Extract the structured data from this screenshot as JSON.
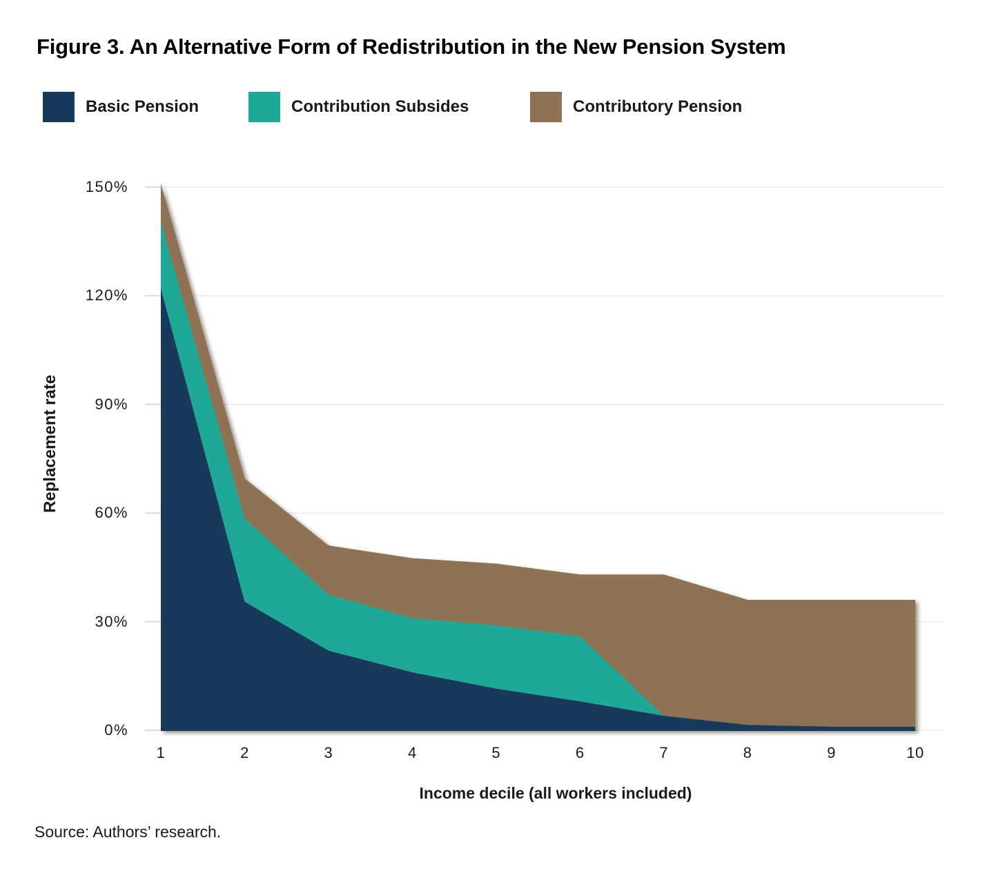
{
  "title": "Figure 3. An Alternative Form of Redistribution in the New Pension System",
  "legend": [
    {
      "label": "Basic Pension",
      "color": "#17395C"
    },
    {
      "label": "Contribution Subsides",
      "color": "#20A897"
    },
    {
      "label": "Contributory Pension",
      "color": "#8D7254"
    }
  ],
  "source": "Source: Authors’ research.",
  "chart_data": {
    "type": "area",
    "stacked": true,
    "title": "Figure 3. An Alternative Form of Redistribution in the New Pension System",
    "xlabel": "Income decile (all workers included)",
    "ylabel": "Replacement rate",
    "categories": [
      1,
      2,
      3,
      4,
      5,
      6,
      7,
      8,
      9,
      10
    ],
    "series": [
      {
        "name": "Basic Pension",
        "color": "#17395C",
        "values": [
          122,
          35.5,
          22,
          16,
          11.5,
          8,
          4,
          1.5,
          1,
          1
        ]
      },
      {
        "name": "Contribution Subsides",
        "color": "#20A897",
        "values": [
          18.5,
          23,
          15.5,
          15,
          17.5,
          18,
          0,
          0,
          0,
          0
        ]
      },
      {
        "name": "Contributory Pension",
        "color": "#8D7254",
        "values": [
          10.5,
          11,
          13.5,
          16.5,
          17,
          17,
          39,
          34.5,
          35,
          35
        ]
      }
    ],
    "stacked_totals": [
      151,
      69.5,
      51,
      47.5,
      46,
      43,
      43,
      36,
      36,
      36
    ],
    "y_ticks": [
      "0%",
      "30%",
      "60%",
      "90%",
      "120%",
      "150%"
    ],
    "ylim": [
      0,
      150
    ],
    "grid": true,
    "legend_position": "top"
  }
}
